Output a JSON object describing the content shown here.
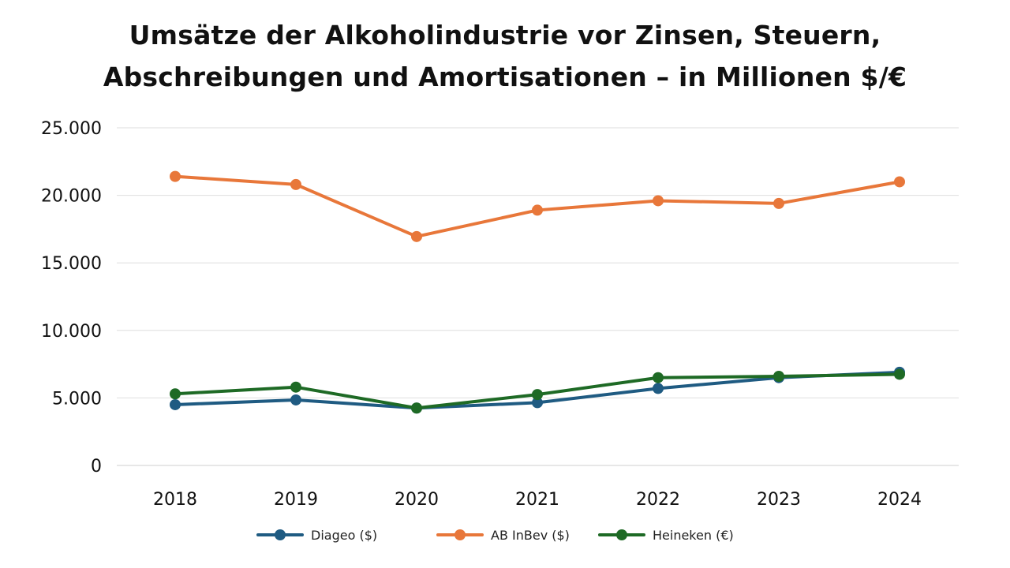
{
  "chart_data": {
    "type": "line",
    "title_lines": [
      "Umsätze der Alkoholindustrie vor Zinsen, Steuern,",
      "Abschreibungen und Amortisationen – in Millionen $/€"
    ],
    "xlabel": "",
    "ylabel": "",
    "categories": [
      "2018",
      "2019",
      "2020",
      "2021",
      "2022",
      "2023",
      "2024"
    ],
    "ylim": [
      0,
      25000
    ],
    "yticks": [
      0,
      5000,
      10000,
      15000,
      20000,
      25000
    ],
    "ytick_labels": [
      "0",
      "5.000",
      "10.000",
      "15.000",
      "20.000",
      "25.000"
    ],
    "grid": "horizontal",
    "legend": "bottom",
    "series": [
      {
        "name": "Diageo ($)",
        "color": "#1f5b82",
        "values": [
          4500,
          4850,
          4250,
          4650,
          5700,
          6500,
          6900
        ]
      },
      {
        "name": "AB InBev ($)",
        "color": "#e8773a",
        "values": [
          21400,
          20800,
          16950,
          18900,
          19600,
          19400,
          21000
        ]
      },
      {
        "name": "Heineken (€)",
        "color": "#1e6a25",
        "values": [
          5300,
          5800,
          4250,
          5250,
          6500,
          6600,
          6750
        ]
      }
    ]
  }
}
